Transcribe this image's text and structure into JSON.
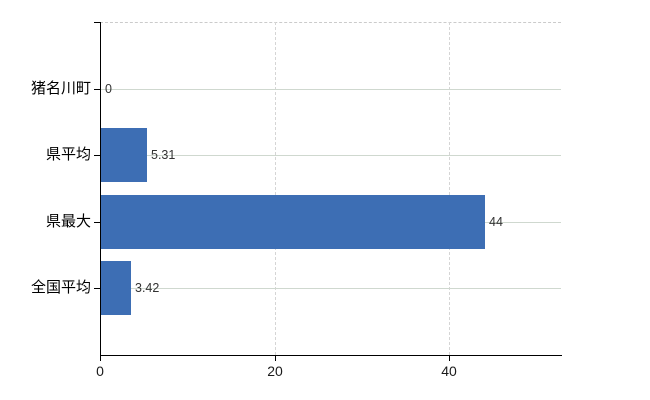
{
  "chart_data": {
    "type": "bar",
    "orientation": "horizontal",
    "title": "",
    "xlabel": "",
    "ylabel": "",
    "categories": [
      "猪名川町",
      "県平均",
      "県最大",
      "全国平均"
    ],
    "values": [
      0,
      5.31,
      44,
      3.42
    ],
    "value_labels": [
      "0",
      "5.31",
      "44",
      "3.42"
    ],
    "xlim": [
      0,
      52.8
    ],
    "xticks": [
      0,
      20,
      40
    ],
    "xtick_labels": [
      "0",
      "20",
      "40"
    ],
    "grid": true,
    "legend": "none",
    "bar_color": "#3d6eb4",
    "h_gridline_color": "#cfd8cf",
    "v_gridline_color": "#d5d5d5",
    "axis_color": "#000000"
  }
}
